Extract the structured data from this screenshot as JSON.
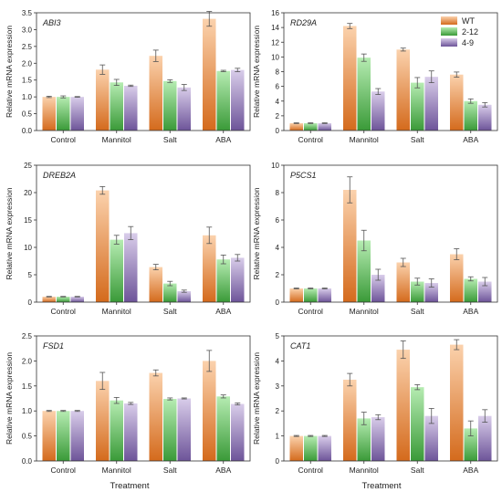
{
  "figure": {
    "xlabel": "Treatment",
    "ylabel": "Relative mRNA expression",
    "categories": [
      "Control",
      "Mannitol",
      "Salt",
      "ABA"
    ],
    "legend": [
      "WT",
      "2-12",
      "4-9"
    ]
  },
  "colors": {
    "WT": {
      "top": "#fbd2ad",
      "bottom": "#d46a1c"
    },
    "2-12": {
      "top": "#b6ecb2",
      "bottom": "#3a9a38"
    },
    "4-9": {
      "top": "#d9cdea",
      "bottom": "#6d5499"
    },
    "error": "#555555",
    "axis": "#333333"
  },
  "chart_data": [
    {
      "type": "bar",
      "title": "ABI3",
      "categories": [
        "Control",
        "Mannitol",
        "Salt",
        "ABA"
      ],
      "ylim": [
        0,
        3.5
      ],
      "yticks": [
        "0.0",
        "0.5",
        "1.0",
        "1.5",
        "2.0",
        "2.5",
        "3.0",
        "3.5"
      ],
      "series": [
        {
          "name": "WT",
          "values": [
            1.0,
            1.81,
            2.22,
            3.32
          ],
          "errors": [
            0.02,
            0.14,
            0.17,
            0.22
          ]
        },
        {
          "name": "2-12",
          "values": [
            1.0,
            1.43,
            1.47,
            1.77
          ],
          "errors": [
            0.03,
            0.09,
            0.04,
            0.02
          ]
        },
        {
          "name": "4-9",
          "values": [
            1.0,
            1.33,
            1.28,
            1.8
          ],
          "errors": [
            0.01,
            0.02,
            0.09,
            0.05
          ]
        }
      ]
    },
    {
      "type": "bar",
      "title": "RD29A",
      "categories": [
        "Control",
        "Mannitol",
        "Salt",
        "ABA"
      ],
      "ylim": [
        0,
        16
      ],
      "yticks": [
        "0",
        "2",
        "4",
        "6",
        "8",
        "10",
        "12",
        "14",
        "16"
      ],
      "legend": [
        "WT",
        "2-12",
        "4-9"
      ],
      "series": [
        {
          "name": "WT",
          "values": [
            1.0,
            14.2,
            11.0,
            7.6
          ],
          "errors": [
            0.05,
            0.35,
            0.2,
            0.35
          ]
        },
        {
          "name": "2-12",
          "values": [
            1.0,
            9.9,
            6.5,
            4.0
          ],
          "errors": [
            0.05,
            0.5,
            0.7,
            0.3
          ]
        },
        {
          "name": "4-9",
          "values": [
            1.0,
            5.3,
            7.3,
            3.5
          ],
          "errors": [
            0.05,
            0.4,
            0.8,
            0.3
          ]
        }
      ]
    },
    {
      "type": "bar",
      "title": "DREB2A",
      "categories": [
        "Control",
        "Mannitol",
        "Salt",
        "ABA"
      ],
      "ylim": [
        0,
        25
      ],
      "yticks": [
        "0",
        "5",
        "10",
        "15",
        "20",
        "25"
      ],
      "series": [
        {
          "name": "WT",
          "values": [
            1.0,
            20.4,
            6.4,
            12.2
          ],
          "errors": [
            0.05,
            0.7,
            0.5,
            1.5
          ]
        },
        {
          "name": "2-12",
          "values": [
            1.0,
            11.4,
            3.4,
            7.8
          ],
          "errors": [
            0.05,
            0.8,
            0.4,
            0.8
          ]
        },
        {
          "name": "4-9",
          "values": [
            1.0,
            12.6,
            2.0,
            8.1
          ],
          "errors": [
            0.05,
            1.2,
            0.2,
            0.6
          ]
        }
      ]
    },
    {
      "type": "bar",
      "title": "P5CS1",
      "categories": [
        "Control",
        "Mannitol",
        "Salt",
        "ABA"
      ],
      "ylim": [
        0,
        10
      ],
      "yticks": [
        "0",
        "2",
        "4",
        "6",
        "8",
        "10"
      ],
      "series": [
        {
          "name": "WT",
          "values": [
            1.0,
            8.2,
            2.9,
            3.5
          ],
          "errors": [
            0.03,
            0.95,
            0.3,
            0.4
          ]
        },
        {
          "name": "2-12",
          "values": [
            1.0,
            4.5,
            1.5,
            1.7
          ],
          "errors": [
            0.03,
            0.75,
            0.25,
            0.15
          ]
        },
        {
          "name": "4-9",
          "values": [
            1.0,
            2.0,
            1.4,
            1.5
          ],
          "errors": [
            0.03,
            0.4,
            0.3,
            0.3
          ]
        }
      ]
    },
    {
      "type": "bar",
      "title": "FSD1",
      "categories": [
        "Control",
        "Mannitol",
        "Salt",
        "ABA"
      ],
      "ylim": [
        0,
        2.5
      ],
      "yticks": [
        "0.0",
        "0.5",
        "1.0",
        "1.5",
        "2.0",
        "2.5"
      ],
      "series": [
        {
          "name": "WT",
          "values": [
            1.0,
            1.6,
            1.76,
            2.0
          ],
          "errors": [
            0.01,
            0.17,
            0.06,
            0.21
          ]
        },
        {
          "name": "2-12",
          "values": [
            1.0,
            1.21,
            1.24,
            1.29
          ],
          "errors": [
            0.01,
            0.06,
            0.02,
            0.03
          ]
        },
        {
          "name": "4-9",
          "values": [
            1.0,
            1.15,
            1.25,
            1.14
          ],
          "errors": [
            0.01,
            0.02,
            0.01,
            0.02
          ]
        }
      ]
    },
    {
      "type": "bar",
      "title": "CAT1",
      "categories": [
        "Control",
        "Mannitol",
        "Salt",
        "ABA"
      ],
      "ylim": [
        0,
        5
      ],
      "yticks": [
        "0",
        "1",
        "2",
        "3",
        "4",
        "5"
      ],
      "series": [
        {
          "name": "WT",
          "values": [
            1.0,
            3.25,
            4.45,
            4.65
          ],
          "errors": [
            0.02,
            0.25,
            0.35,
            0.2
          ]
        },
        {
          "name": "2-12",
          "values": [
            1.0,
            1.7,
            2.95,
            1.3
          ],
          "errors": [
            0.02,
            0.25,
            0.1,
            0.3
          ]
        },
        {
          "name": "4-9",
          "values": [
            1.0,
            1.75,
            1.8,
            1.8
          ],
          "errors": [
            0.02,
            0.1,
            0.3,
            0.25
          ]
        }
      ]
    }
  ]
}
